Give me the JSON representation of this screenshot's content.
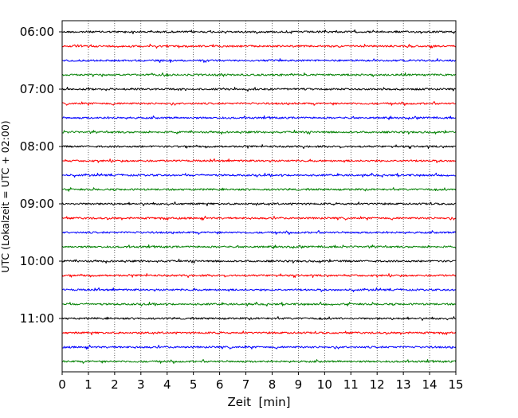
{
  "chart_data": {
    "type": "line",
    "title": "",
    "xlabel": "Zeit  [min]",
    "ylabel": "UTC (Lokalzeit = UTC + 02:00)",
    "xlim": [
      0,
      15
    ],
    "x_ticks": [
      "0",
      "1",
      "2",
      "3",
      "4",
      "5",
      "6",
      "7",
      "8",
      "9",
      "10",
      "11",
      "12",
      "13",
      "14",
      "15"
    ],
    "y_ticks": [
      "06:00",
      "07:00",
      "08:00",
      "09:00",
      "10:00",
      "11:00"
    ],
    "trace_start": "06:00",
    "trace_interval_minutes": 15,
    "trace_count": 24,
    "trace_colors": [
      "#000000",
      "#ff0000",
      "#0000ff",
      "#008000"
    ],
    "vertical_grid": "dotted, every minute",
    "series_description": "Helicorder seismogram: one 15-minute trace per row, colors cycling black, red, blue, green"
  }
}
